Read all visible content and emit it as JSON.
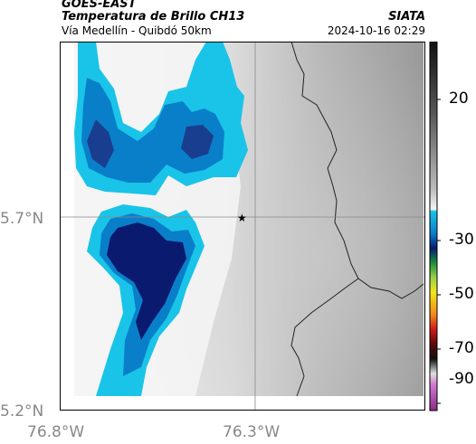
{
  "header": {
    "satellite": "GOES-EAST",
    "product": "Temperatura de Brillo CH13",
    "location": "Vía Medellín - Quibdó 50km",
    "source": "SIATA",
    "datetime": "2024-10-16 02:29"
  },
  "axes": {
    "lat_ticks": [
      "5.7°N",
      "5.2°N"
    ],
    "lon_ticks": [
      "76.8°W",
      "76.3°W"
    ]
  },
  "colorbar": {
    "labels": [
      "20",
      "-30",
      "-50",
      "-70",
      "-90"
    ],
    "colors": {
      "cloud_deep": "#0a1a6e",
      "cloud_mid": "#0a7fc9",
      "cloud_light": "#19c4e8",
      "warm": "#9a9a9a"
    }
  },
  "markers": [
    {
      "name": "star",
      "symbol": "★"
    }
  ]
}
